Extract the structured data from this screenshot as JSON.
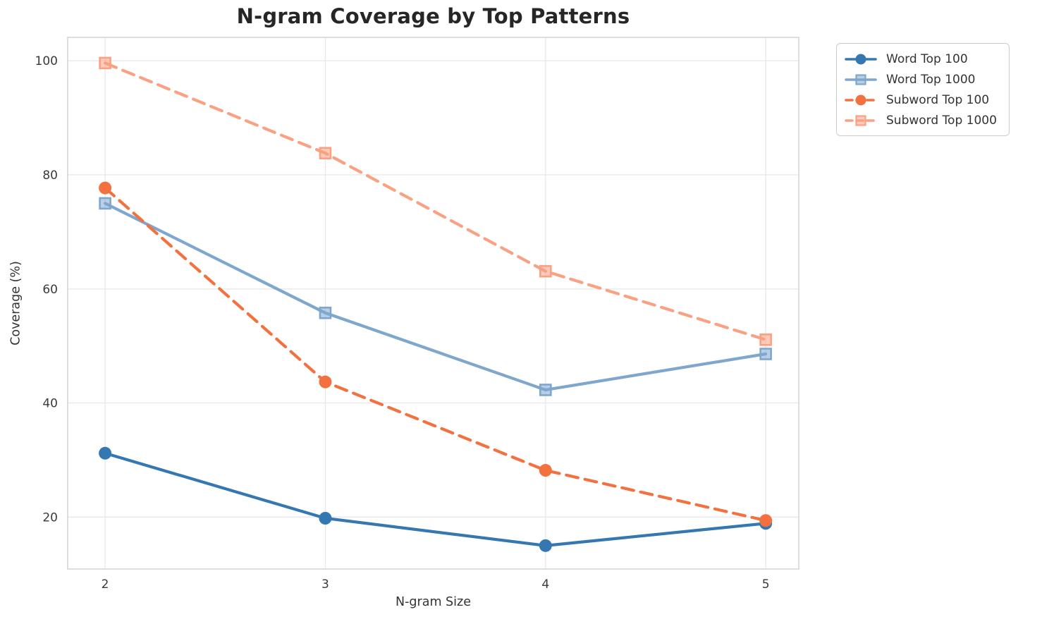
{
  "title": "N-gram Coverage by Top Patterns",
  "chart_data": {
    "type": "line",
    "x": [
      2,
      3,
      4,
      5
    ],
    "xticks": [
      2,
      3,
      4,
      5
    ],
    "yticks": [
      20,
      40,
      60,
      80,
      100
    ],
    "xlabel": "N-gram Size",
    "ylabel": "Coverage (%)",
    "xlim": [
      1.83,
      5.15
    ],
    "ylim": [
      10.9,
      104.1
    ],
    "grid": true,
    "legend_position": "outside upper right",
    "series": [
      {
        "name": "Word Top 100",
        "values": [
          31.2,
          19.8,
          15.0,
          18.9
        ],
        "color": "#3578b1",
        "line_style": "solid",
        "marker": "circle"
      },
      {
        "name": "Word Top 1000",
        "values": [
          75.0,
          55.8,
          42.3,
          48.6
        ],
        "color": "#7fa7cd",
        "line_style": "solid",
        "marker": "square"
      },
      {
        "name": "Subword Top 100",
        "values": [
          77.7,
          43.7,
          28.2,
          19.4
        ],
        "color": "#f3713f",
        "line_style": "dashed",
        "marker": "circle"
      },
      {
        "name": "Subword Top 1000",
        "values": [
          99.6,
          83.8,
          63.1,
          51.1
        ],
        "color": "#f9a182",
        "line_style": "dashed",
        "marker": "square"
      }
    ]
  }
}
